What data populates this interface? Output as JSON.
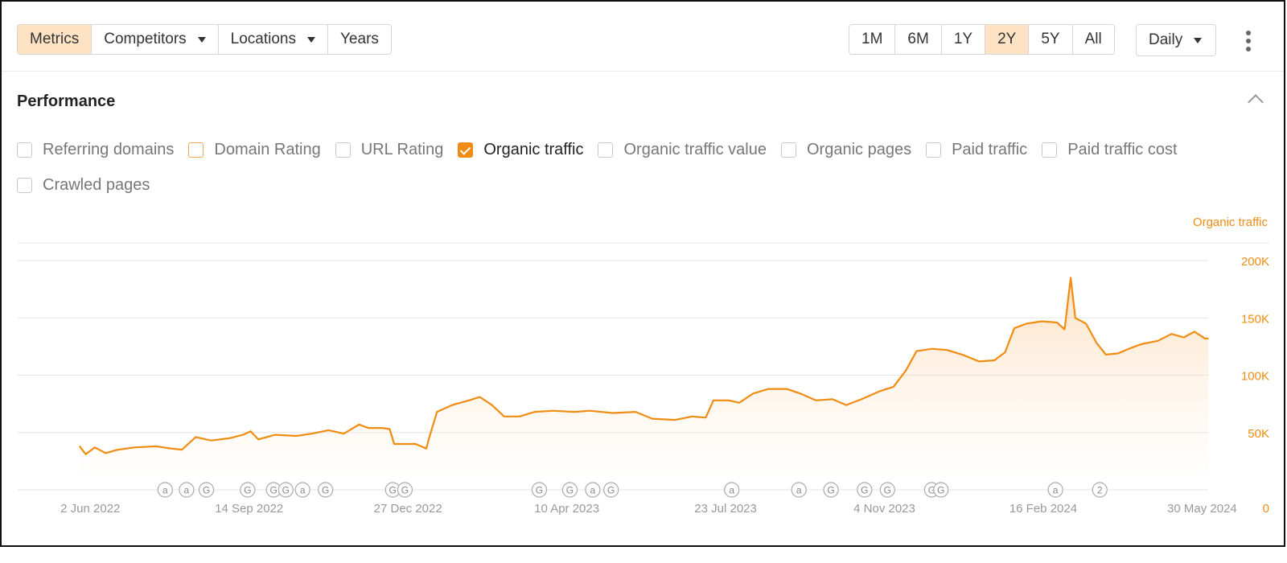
{
  "toolbar": {
    "tabs": [
      {
        "label": "Metrics",
        "active": true
      },
      {
        "label": "Competitors",
        "dropdown": true
      },
      {
        "label": "Locations",
        "dropdown": true
      },
      {
        "label": "Years"
      }
    ],
    "ranges": [
      {
        "label": "1M"
      },
      {
        "label": "6M"
      },
      {
        "label": "1Y"
      },
      {
        "label": "2Y",
        "active": true
      },
      {
        "label": "5Y"
      },
      {
        "label": "All"
      }
    ],
    "interval": "Daily",
    "more_icon": "kebab-menu-icon"
  },
  "performance": {
    "title": "Performance",
    "collapse_icon": "chevron-up-icon",
    "metrics": [
      {
        "label": "Referring domains",
        "checked": false
      },
      {
        "label": "Domain Rating",
        "checked": false
      },
      {
        "label": "URL Rating",
        "checked": false
      },
      {
        "label": "Organic traffic",
        "checked": true
      },
      {
        "label": "Organic traffic value",
        "checked": false
      },
      {
        "label": "Organic pages",
        "checked": false
      },
      {
        "label": "Paid traffic",
        "checked": false
      },
      {
        "label": "Paid traffic cost",
        "checked": false
      },
      {
        "label": "Crawled pages",
        "checked": false
      }
    ]
  },
  "colors": {
    "accent": "#f08c12",
    "accent_light": "#fde2c4",
    "grid": "#e6e6e6",
    "axis_text": "#999999"
  },
  "chart_data": {
    "type": "area",
    "title": "",
    "ylabel": "Organic traffic",
    "xlim": [
      "2022-05-26",
      "2024-06-03"
    ],
    "ylim": [
      0,
      200000
    ],
    "y_ticks": [
      {
        "value": 0,
        "label": "0"
      },
      {
        "value": 50000,
        "label": "50K"
      },
      {
        "value": 100000,
        "label": "100K"
      },
      {
        "value": 150000,
        "label": "150K"
      },
      {
        "value": 200000,
        "label": "200K"
      }
    ],
    "x_ticks": [
      {
        "date": "2022-06-02",
        "label": "2 Jun 2022"
      },
      {
        "date": "2022-09-14",
        "label": "14 Sep 2022"
      },
      {
        "date": "2022-12-27",
        "label": "27 Dec 2022"
      },
      {
        "date": "2023-04-10",
        "label": "10 Apr 2023"
      },
      {
        "date": "2023-07-23",
        "label": "23 Jul 2023"
      },
      {
        "date": "2023-11-04",
        "label": "4 Nov 2023"
      },
      {
        "date": "2024-02-16",
        "label": "16 Feb 2024"
      },
      {
        "date": "2024-05-30",
        "label": "30 May 2024"
      }
    ],
    "grid": true,
    "series": [
      {
        "name": "Organic traffic",
        "color": "#f08c12",
        "points": [
          [
            "2022-05-26",
            38000
          ],
          [
            "2022-05-30",
            31000
          ],
          [
            "2022-06-05",
            37000
          ],
          [
            "2022-06-12",
            32000
          ],
          [
            "2022-06-20",
            35000
          ],
          [
            "2022-07-01",
            37000
          ],
          [
            "2022-07-15",
            38000
          ],
          [
            "2022-07-25",
            36000
          ],
          [
            "2022-08-01",
            35000
          ],
          [
            "2022-08-10",
            46000
          ],
          [
            "2022-08-20",
            43000
          ],
          [
            "2022-09-01",
            45000
          ],
          [
            "2022-09-10",
            48000
          ],
          [
            "2022-09-15",
            51000
          ],
          [
            "2022-09-20",
            44000
          ],
          [
            "2022-10-01",
            48000
          ],
          [
            "2022-10-15",
            47000
          ],
          [
            "2022-10-25",
            49000
          ],
          [
            "2022-11-05",
            52000
          ],
          [
            "2022-11-15",
            49000
          ],
          [
            "2022-11-25",
            57000
          ],
          [
            "2022-12-01",
            54000
          ],
          [
            "2022-12-10",
            54000
          ],
          [
            "2022-12-15",
            53000
          ],
          [
            "2022-12-18",
            40000
          ],
          [
            "2022-12-25",
            40000
          ],
          [
            "2023-01-01",
            40000
          ],
          [
            "2023-01-08",
            36000
          ],
          [
            "2023-01-10",
            46000
          ],
          [
            "2023-01-15",
            68000
          ],
          [
            "2023-01-25",
            74000
          ],
          [
            "2023-02-05",
            78000
          ],
          [
            "2023-02-12",
            81000
          ],
          [
            "2023-02-20",
            74000
          ],
          [
            "2023-02-28",
            64000
          ],
          [
            "2023-03-10",
            64000
          ],
          [
            "2023-03-20",
            68000
          ],
          [
            "2023-04-01",
            69000
          ],
          [
            "2023-04-15",
            68000
          ],
          [
            "2023-04-25",
            69000
          ],
          [
            "2023-05-10",
            67000
          ],
          [
            "2023-05-25",
            68000
          ],
          [
            "2023-06-05",
            62000
          ],
          [
            "2023-06-20",
            61000
          ],
          [
            "2023-07-01",
            64000
          ],
          [
            "2023-07-10",
            63000
          ],
          [
            "2023-07-15",
            78000
          ],
          [
            "2023-07-25",
            78000
          ],
          [
            "2023-08-01",
            76000
          ],
          [
            "2023-08-10",
            84000
          ],
          [
            "2023-08-20",
            88000
          ],
          [
            "2023-09-01",
            88000
          ],
          [
            "2023-09-10",
            84000
          ],
          [
            "2023-09-20",
            78000
          ],
          [
            "2023-10-01",
            79000
          ],
          [
            "2023-10-10",
            74000
          ],
          [
            "2023-10-20",
            79000
          ],
          [
            "2023-11-01",
            86000
          ],
          [
            "2023-11-10",
            90000
          ],
          [
            "2023-11-18",
            104000
          ],
          [
            "2023-11-25",
            121000
          ],
          [
            "2023-12-05",
            123000
          ],
          [
            "2023-12-15",
            122000
          ],
          [
            "2023-12-25",
            118000
          ],
          [
            "2024-01-05",
            112000
          ],
          [
            "2024-01-15",
            113000
          ],
          [
            "2024-01-22",
            120000
          ],
          [
            "2024-01-28",
            141000
          ],
          [
            "2024-02-05",
            145000
          ],
          [
            "2024-02-15",
            147000
          ],
          [
            "2024-02-25",
            146000
          ],
          [
            "2024-03-01",
            140000
          ],
          [
            "2024-03-05",
            185000
          ],
          [
            "2024-03-08",
            150000
          ],
          [
            "2024-03-15",
            145000
          ],
          [
            "2024-03-22",
            128000
          ],
          [
            "2024-03-28",
            118000
          ],
          [
            "2024-04-05",
            119000
          ],
          [
            "2024-04-12",
            123000
          ],
          [
            "2024-04-20",
            127000
          ],
          [
            "2024-05-01",
            130000
          ],
          [
            "2024-05-10",
            136000
          ],
          [
            "2024-05-18",
            133000
          ],
          [
            "2024-05-25",
            138000
          ],
          [
            "2024-06-01",
            132000
          ],
          [
            "2024-06-03",
            132000
          ]
        ]
      }
    ],
    "annotations": [
      {
        "date": "2022-07-21",
        "label": "a"
      },
      {
        "date": "2022-08-04",
        "label": "a"
      },
      {
        "date": "2022-08-17",
        "label": "G"
      },
      {
        "date": "2022-09-13",
        "label": "G"
      },
      {
        "date": "2022-09-30",
        "label": "G"
      },
      {
        "date": "2022-10-08",
        "label": "G"
      },
      {
        "date": "2022-10-19",
        "label": "a"
      },
      {
        "date": "2022-11-03",
        "label": "G"
      },
      {
        "date": "2022-12-17",
        "label": "G"
      },
      {
        "date": "2022-12-25",
        "label": "G"
      },
      {
        "date": "2023-03-23",
        "label": "G"
      },
      {
        "date": "2023-04-12",
        "label": "G"
      },
      {
        "date": "2023-04-27",
        "label": "a"
      },
      {
        "date": "2023-05-09",
        "label": "G"
      },
      {
        "date": "2023-07-27",
        "label": "a"
      },
      {
        "date": "2023-09-09",
        "label": "a"
      },
      {
        "date": "2023-09-30",
        "label": "G"
      },
      {
        "date": "2023-10-22",
        "label": "G"
      },
      {
        "date": "2023-11-06",
        "label": "G"
      },
      {
        "date": "2023-12-05",
        "label": "G"
      },
      {
        "date": "2023-12-11",
        "label": "G"
      },
      {
        "date": "2024-02-24",
        "label": "a"
      },
      {
        "date": "2024-03-24",
        "label": "2"
      }
    ]
  }
}
